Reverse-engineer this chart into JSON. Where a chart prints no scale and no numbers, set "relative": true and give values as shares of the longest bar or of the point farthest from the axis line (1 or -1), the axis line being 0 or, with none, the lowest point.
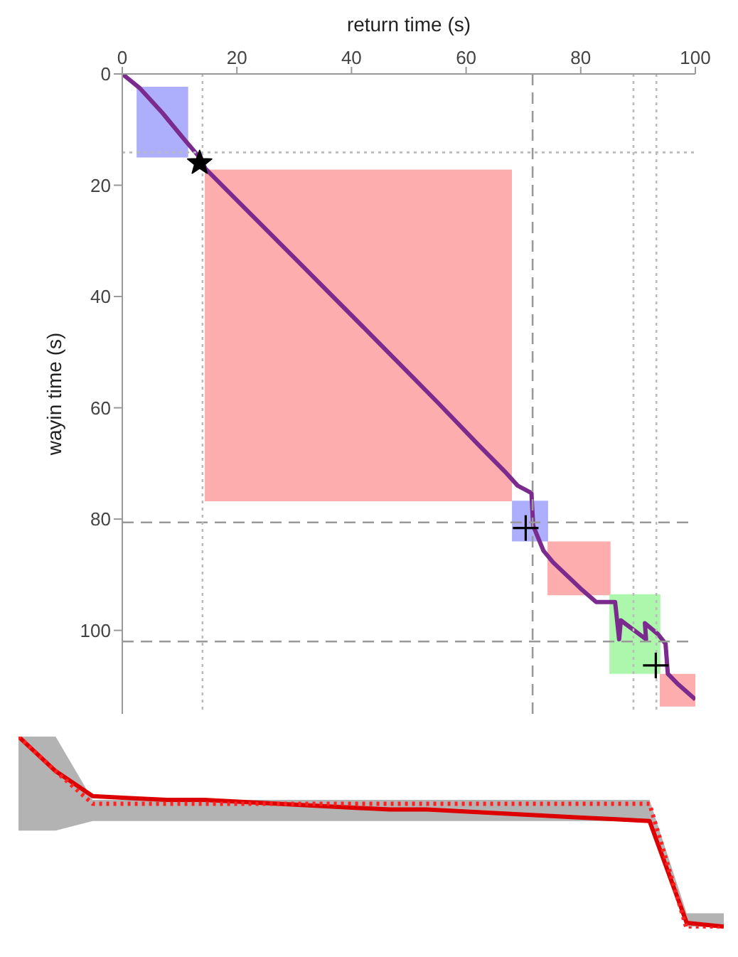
{
  "chart_data": [
    {
      "type": "line",
      "xlabel": "return time (s)",
      "ylabel": "wayin time (s)",
      "xlim": [
        0,
        100
      ],
      "xticks": [
        0,
        20,
        40,
        60,
        80,
        100
      ],
      "ylim": [
        115,
        0
      ],
      "yticks": [
        0,
        20,
        40,
        60,
        80,
        100
      ],
      "grid": false,
      "legend": false,
      "series": [
        {
          "color": "#adaefc",
          "x": [
            2.5,
            11.5
          ],
          "lower": [
            2.3,
            2.3
          ],
          "upper": [
            15,
            15
          ],
          "values": [
            null,
            null
          ]
        },
        {
          "color": "#fdadad",
          "x": [
            14.4,
            68
          ],
          "lower": [
            17.2,
            17.2
          ],
          "upper": [
            76.8,
            76.8
          ],
          "values": [
            null,
            null
          ]
        },
        {
          "color": "#adaefc",
          "x": [
            68,
            74.3
          ],
          "lower": [
            76.7,
            76.7
          ],
          "upper": [
            84,
            84
          ],
          "values": [
            null,
            null
          ]
        },
        {
          "color": "#fdadad",
          "x": [
            74.2,
            85.2
          ],
          "lower": [
            84,
            84
          ],
          "upper": [
            93.7,
            93.7
          ],
          "values": [
            null,
            null
          ]
        },
        {
          "color": "#adf7ad",
          "x": [
            85,
            93.9
          ],
          "lower": [
            93.5,
            93.5
          ],
          "upper": [
            107.8,
            107.8
          ],
          "values": [
            null,
            null
          ]
        },
        {
          "color": "#fdadad",
          "x": [
            93.8,
            100
          ],
          "lower": [
            107.8,
            107.8
          ],
          "upper": [
            113.7,
            113.7
          ],
          "values": [
            null,
            null
          ]
        },
        {
          "color": "#7b2a8e",
          "marker": "none",
          "x": [
            0,
            3,
            7,
            11,
            13.5,
            14.5,
            20,
            30,
            43.5,
            55,
            62,
            66.8,
            69,
            71.4,
            71.7,
            73.5,
            75.2,
            80,
            82.7,
            86,
            86.7,
            87,
            91.4,
            91.2,
            93.5,
            94.8,
            95.2,
            96.8,
            100
          ],
          "values": [
            0,
            2.5,
            7,
            12,
            15,
            17,
            22.7,
            33,
            47,
            59,
            66.5,
            71.5,
            74,
            75.3,
            81.2,
            85.7,
            87.8,
            92.5,
            94.9,
            94.9,
            101.6,
            98.2,
            101.6,
            98.7,
            100.7,
            102.4,
            107.8,
            109.5,
            112.4
          ]
        },
        {
          "type": "scatter",
          "color": "#000000",
          "marker": "star",
          "x": [
            13.5
          ],
          "values": [
            16
          ]
        },
        {
          "type": "scatter",
          "color": "#000000",
          "marker": "cross",
          "x": [
            70.4,
            93.1
          ],
          "values": [
            81.6,
            106.3
          ]
        }
      ],
      "ref_lines": [
        {
          "axis": "x",
          "value": 71.6,
          "color": "#999999",
          "line_style": "dashed"
        },
        {
          "axis": "y",
          "value": 80.6,
          "color": "#999999",
          "line_style": "dashed"
        },
        {
          "axis": "y",
          "value": 102,
          "color": "#999999",
          "line_style": "dashed"
        },
        {
          "axis": "x",
          "value": 14,
          "color": "#bbbbbb",
          "line_style": "dotted"
        },
        {
          "axis": "x",
          "value": 89.2,
          "color": "#bbbbbb",
          "line_style": "dotted"
        },
        {
          "axis": "x",
          "value": 93.2,
          "color": "#bbbbbb",
          "line_style": "dotted"
        },
        {
          "axis": "y",
          "value": 14.1,
          "color": "#bbbbbb",
          "line_style": "dotted"
        }
      ]
    },
    {
      "type": "line",
      "relative": true,
      "legend": false,
      "categories": [
        null,
        null,
        null,
        null,
        null,
        null,
        null,
        null,
        null,
        null,
        null,
        null,
        null,
        null,
        null,
        null,
        null,
        null,
        null,
        null
      ],
      "series": [
        {
          "color": "#b3b3b3",
          "values": [
            null,
            null,
            null,
            null,
            null,
            null,
            null,
            null,
            null,
            null,
            null,
            null,
            null,
            null,
            null,
            null,
            null,
            null,
            null,
            null
          ],
          "lower": [
            0.51,
            0.51,
            0.56,
            0.56,
            0.56,
            0.56,
            0.56,
            0.56,
            0.56,
            0.56,
            0.56,
            0.56,
            0.56,
            0.56,
            0.56,
            0.56,
            0.56,
            0.56,
            0.01,
            0.01
          ],
          "upper": [
            1.0,
            1.0,
            0.67,
            0.67,
            0.67,
            0.67,
            0.67,
            0.67,
            0.67,
            0.67,
            0.67,
            0.67,
            0.67,
            0.67,
            0.67,
            0.67,
            0.67,
            0.67,
            0.08,
            0.08
          ]
        },
        {
          "color": "#dd0000",
          "line_style": "solid",
          "values": [
            1.0,
            0.82,
            0.69,
            0.68,
            0.67,
            0.67,
            0.66,
            0.65,
            0.64,
            0.63,
            0.62,
            0.62,
            0.61,
            0.6,
            0.59,
            0.58,
            0.57,
            0.56,
            0.03,
            0.01
          ]
        },
        {
          "color": "#ff2222",
          "line_style": "dotted",
          "values": [
            1.0,
            0.82,
            0.65,
            0.65,
            0.65,
            0.65,
            0.65,
            0.65,
            0.65,
            0.65,
            0.65,
            0.65,
            0.65,
            0.65,
            0.65,
            0.65,
            0.65,
            0.65,
            0.0,
            0.0
          ]
        }
      ]
    }
  ]
}
